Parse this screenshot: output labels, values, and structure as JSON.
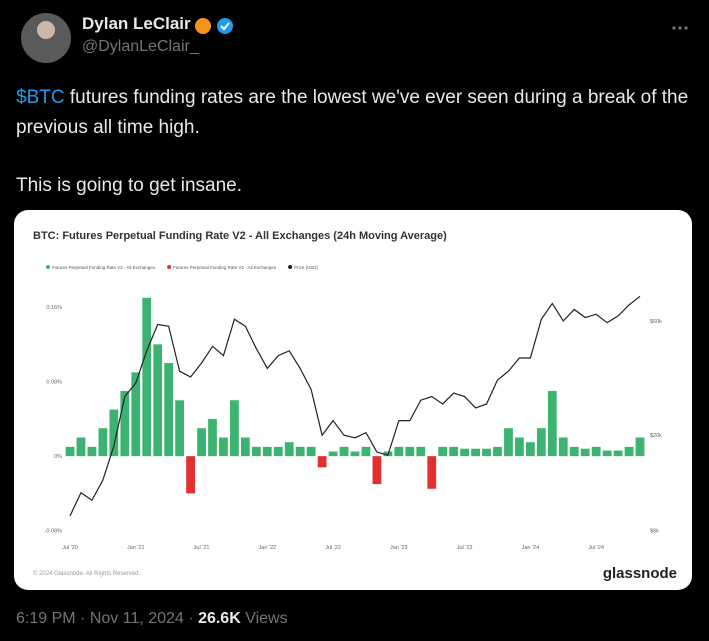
{
  "tweet": {
    "author": "Dylan LeClair",
    "handle": "@DylanLeClair_",
    "cashtag": "$BTC",
    "paragraphs": [
      " futures funding rates are the lowest we've ever seen during a break of the previous all time high.",
      "This is going to get insane."
    ],
    "time": "6:19 PM",
    "date": "Nov 11, 2024",
    "separator": "·",
    "views_count": "26.6K",
    "views_label": "Views"
  },
  "chart": {
    "type": "bar-line",
    "title": "BTC: Futures Perpetual Funding Rate V2 - All Exchanges (24h Moving Average)",
    "footer": "© 2024 Glassnode. All Rights Reserved.",
    "brand": "glassnode",
    "categories": [
      "Jul '20",
      null,
      null,
      null,
      null,
      null,
      "Jan '21",
      null,
      null,
      null,
      null,
      null,
      "Jul '21",
      null,
      null,
      null,
      null,
      null,
      "Jan '22",
      null,
      null,
      null,
      null,
      null,
      "Jul '22",
      null,
      null,
      null,
      null,
      null,
      "Jan '23",
      null,
      null,
      null,
      null,
      null,
      "Jul '23",
      null,
      null,
      null,
      null,
      null,
      "Jan '24",
      null,
      null,
      null,
      null,
      null,
      "Jul '24",
      null,
      null,
      null,
      null
    ],
    "series": [
      {
        "name": "Futures Perpetual Funding Rate V2 - All Exchanges",
        "color": "#3cb371",
        "values": [
          0.01,
          0.02,
          0.01,
          0.03,
          0.05,
          0.07,
          0.09,
          0.17,
          0.12,
          0.1,
          0.06,
          null,
          0.03,
          0.04,
          0.02,
          0.06,
          0.02,
          0.01,
          0.01,
          0.01,
          0.015,
          0.01,
          0.01,
          null,
          0.005,
          0.01,
          0.005,
          0.01,
          null,
          0.005,
          0.01,
          0.01,
          0.01,
          null,
          0.01,
          0.01,
          0.008,
          0.008,
          0.008,
          0.01,
          0.03,
          0.02,
          0.015,
          0.03,
          0.07,
          0.02,
          0.01,
          0.008,
          0.01,
          0.006,
          0.006,
          0.01,
          0.02
        ]
      },
      {
        "name": "Futures Perpetual Funding Rate V2 - All Exchanges",
        "color": "#e03030",
        "values": [
          null,
          null,
          null,
          null,
          null,
          null,
          null,
          null,
          null,
          null,
          null,
          -0.04,
          null,
          null,
          null,
          null,
          null,
          null,
          null,
          null,
          null,
          null,
          null,
          -0.012,
          null,
          null,
          null,
          null,
          -0.03,
          null,
          null,
          null,
          null,
          -0.035,
          null,
          null,
          null,
          null,
          null,
          null,
          null,
          null,
          null,
          null,
          null,
          null,
          null,
          null,
          null,
          null,
          null,
          null,
          null
        ]
      },
      {
        "name": "Price [USD]",
        "color": "#222222",
        "axis": "y2",
        "values": [
          9200,
          11500,
          10700,
          13000,
          18000,
          29000,
          33000,
          45000,
          58000,
          57000,
          37000,
          35000,
          40000,
          47000,
          43000,
          61000,
          57000,
          46000,
          38000,
          43000,
          45000,
          38000,
          31000,
          20000,
          23000,
          20000,
          19500,
          20500,
          17000,
          16500,
          23000,
          23000,
          28000,
          29000,
          27000,
          30000,
          29000,
          26000,
          27000,
          34000,
          37000,
          42000,
          42000,
          61000,
          71000,
          60000,
          67000,
          62000,
          64000,
          59000,
          63000,
          70000,
          76000
        ]
      }
    ],
    "ylim": [
      -0.09,
      0.173
    ],
    "yticks": [
      {
        "value": 0.16,
        "label": "0.16%"
      },
      {
        "value": 0.08,
        "label": "0.08%"
      },
      {
        "value": 0,
        "label": "0%"
      },
      {
        "value": -0.08,
        "label": "-0.08%"
      }
    ],
    "y2lim": [
      7300,
      77000
    ],
    "y2scale": "log",
    "y2ticks": [
      {
        "value": 60000,
        "label": "$60k"
      },
      {
        "value": 20000,
        "label": "$20k"
      },
      {
        "value": 8000,
        "label": "$8k"
      }
    ]
  }
}
